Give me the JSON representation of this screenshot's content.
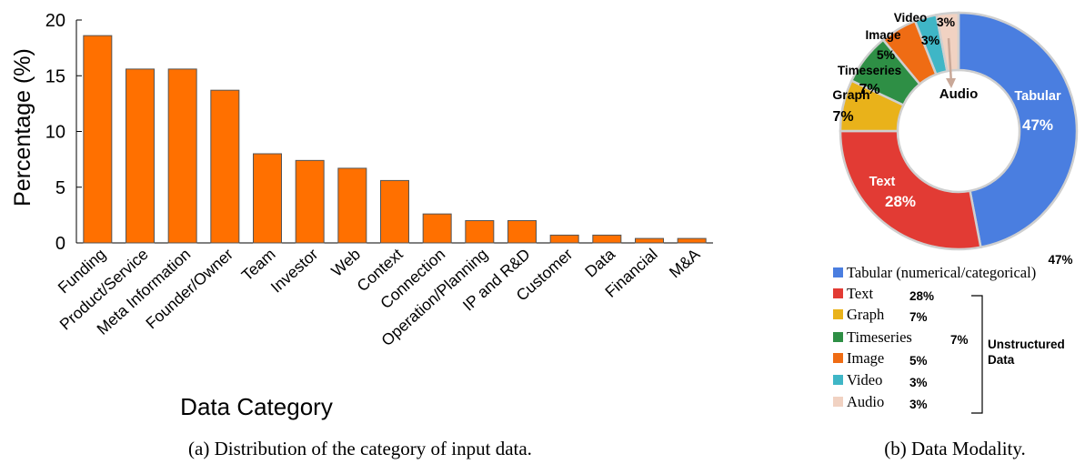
{
  "chart_data": [
    {
      "type": "bar",
      "title": "",
      "xlabel": "Data Category",
      "ylabel": "Percentage (%)",
      "ylim": [
        0,
        20
      ],
      "yticks": [
        0,
        5,
        10,
        15,
        20
      ],
      "bar_color": "#ff7000",
      "categories": [
        "Funding",
        "Product/Service",
        "Meta Information",
        "Founder/Owner",
        "Team",
        "Investor",
        "Web",
        "Context",
        "Connection",
        "Operation/Planning",
        "IP and R&D",
        "Customer",
        "Data",
        "Financial",
        "M&A"
      ],
      "values": [
        18.6,
        15.6,
        15.6,
        13.7,
        8.0,
        7.4,
        6.7,
        5.6,
        2.6,
        2.0,
        2.0,
        0.7,
        0.7,
        0.4,
        0.4
      ],
      "caption": "(a) Distribution of the category of input data."
    },
    {
      "type": "pie",
      "variant": "donut",
      "center_label": "Audio",
      "slices": [
        {
          "name": "Tabular",
          "legend": "Tabular (numerical/categorical)",
          "value": 47,
          "label": "47%",
          "color": "#4a7ee0"
        },
        {
          "name": "Text",
          "legend": "Text",
          "value": 28,
          "label": "28%",
          "color": "#e23b34"
        },
        {
          "name": "Graph",
          "legend": "Graph",
          "value": 7,
          "label": "7%",
          "color": "#e9b21a"
        },
        {
          "name": "Timeseries",
          "legend": "Timeseries",
          "value": 7,
          "label": "7%",
          "color": "#2e8f45"
        },
        {
          "name": "Image",
          "legend": "Image",
          "value": 5,
          "label": "5%",
          "color": "#ef6c14"
        },
        {
          "name": "Video",
          "legend": "Video",
          "value": 3,
          "label": "3%",
          "color": "#3fb6c6"
        },
        {
          "name": "Audio",
          "legend": "Audio",
          "value": 3,
          "label": "3%",
          "color": "#f1d2c2"
        }
      ],
      "bracket_label": "Unstructured Data",
      "caption": "(b) Data Modality."
    }
  ]
}
